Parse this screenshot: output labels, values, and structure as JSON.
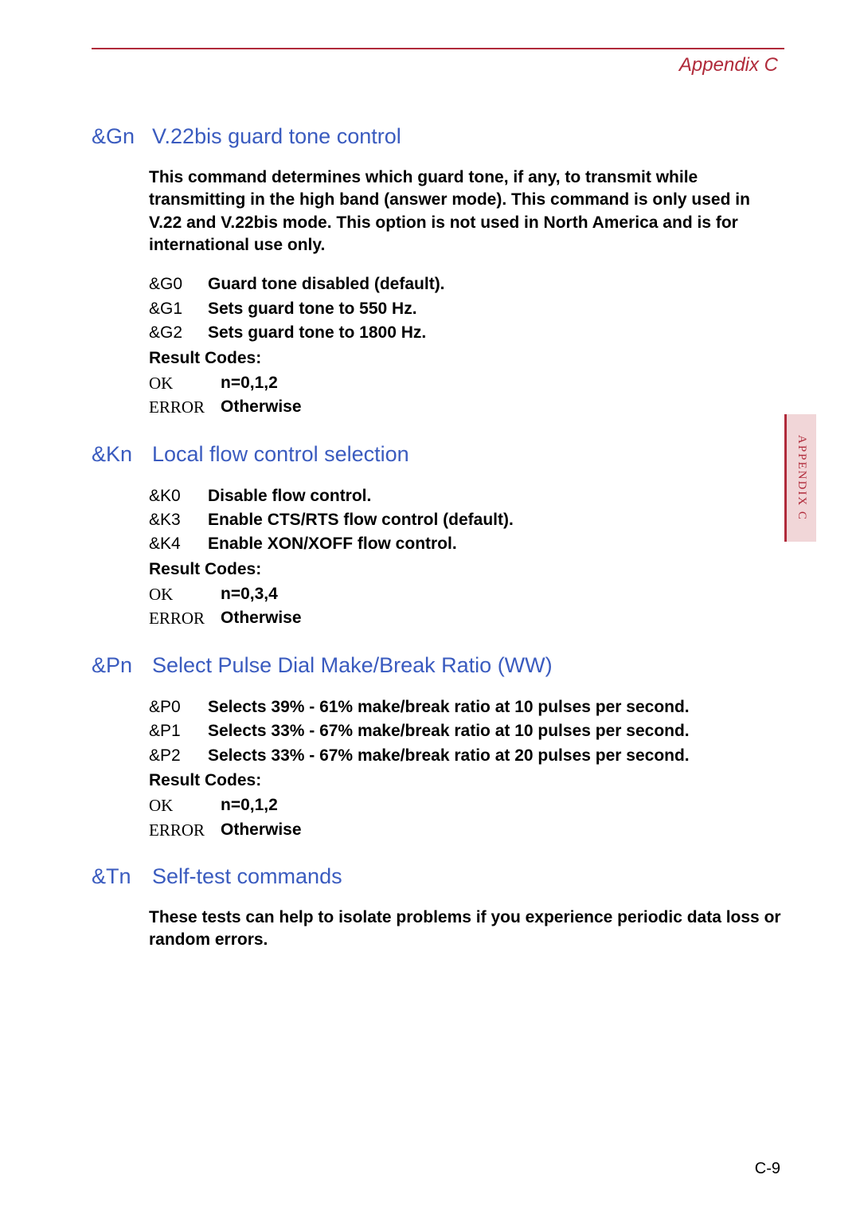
{
  "header": {
    "title": "Appendix C"
  },
  "sideTab": {
    "label": "APPENDIX C"
  },
  "pageNumber": "C-9",
  "sections": [
    {
      "cmd": "&Gn",
      "title": "V.22bis guard tone control",
      "description": "This command determines which guard tone, if any, to transmit while transmitting in the high band (answer mode). This command is only used in V.22 and V.22bis mode. This option is not used in North America and is for international use only.",
      "options": [
        {
          "code": "&G0",
          "text": "Guard tone disabled (default)."
        },
        {
          "code": "&G1",
          "text": "Sets guard tone to 550 Hz."
        },
        {
          "code": "&G2",
          "text": "Sets guard tone to 1800 Hz."
        }
      ],
      "resultLabel": "Result Codes:",
      "results": [
        {
          "code": "OK",
          "val": "n=0,1,2"
        },
        {
          "code": "ERROR",
          "val": "Otherwise"
        }
      ]
    },
    {
      "cmd": "&Kn",
      "title": "Local flow control selection",
      "description": "",
      "options": [
        {
          "code": "&K0",
          "text": "Disable flow control."
        },
        {
          "code": "&K3",
          "text": "Enable CTS/RTS flow control (default)."
        },
        {
          "code": "&K4",
          "text": "Enable XON/XOFF flow control."
        }
      ],
      "resultLabel": "Result Codes:",
      "results": [
        {
          "code": "OK",
          "val": "n=0,3,4"
        },
        {
          "code": "ERROR",
          "val": "Otherwise"
        }
      ]
    },
    {
      "cmd": "&Pn",
      "title": "Select Pulse Dial Make/Break Ratio (WW)",
      "description": "",
      "options": [
        {
          "code": "&P0",
          "text": "Selects 39% - 61% make/break ratio at 10 pulses per second."
        },
        {
          "code": "&P1",
          "text": "Selects 33% - 67% make/break ratio at 10 pulses per second."
        },
        {
          "code": "&P2",
          "text": "Selects 33% - 67% make/break ratio at 20 pulses per second."
        }
      ],
      "resultLabel": "Result Codes:",
      "results": [
        {
          "code": "OK",
          "val": "n=0,1,2"
        },
        {
          "code": "ERROR",
          "val": "Otherwise"
        }
      ]
    },
    {
      "cmd": "&Tn",
      "title": "Self-test commands",
      "description": "These tests can help to isolate problems if you experience periodic data loss or random errors.",
      "options": [],
      "resultLabel": "",
      "results": []
    }
  ],
  "colors": {
    "accent": "#b02a3a",
    "heading": "#3a5bbf",
    "tabBg": "#f1d6d8",
    "text": "#000000",
    "bg": "#ffffff"
  },
  "typography": {
    "body_font": "Arial",
    "serif_font": "Times New Roman",
    "heading_size_pt": 20,
    "body_size_pt": 16
  }
}
